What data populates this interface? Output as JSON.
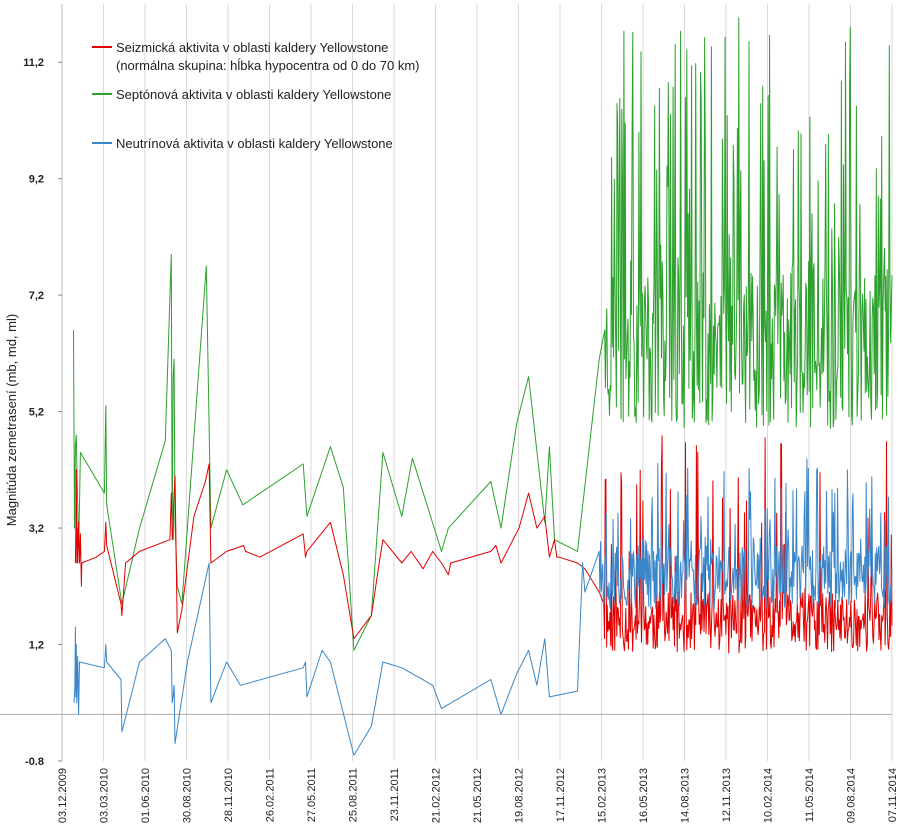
{
  "chart_data": {
    "type": "line",
    "title": "",
    "xlabel": "",
    "ylabel": "Magnitúda zemetrasení (mb, md, ml)",
    "ylim": [
      -0.8,
      12.2
    ],
    "y_ticks": [
      -0.8,
      1.2,
      3.2,
      5.2,
      7.2,
      9.2,
      11.2
    ],
    "y_tick_labels": [
      "-0.8",
      "1,2",
      "3,2",
      "5,2",
      "7,2",
      "9,2",
      "11,2"
    ],
    "x_ticks": [
      "03.12.2009",
      "03.03.2010",
      "01.06.2010",
      "30.08.2010",
      "28.11.2010",
      "26.02.2011",
      "27.05.2011",
      "25.08.2011",
      "23.11.2011",
      "21.02.2012",
      "21.05.2012",
      "19.08.2012",
      "17.11.2012",
      "15.02.2013",
      "16.05.2013",
      "14.08.2013",
      "12.11.2013",
      "10.02.2014",
      "11.05.2014",
      "09.08.2014",
      "07.11.2014"
    ],
    "grid": true,
    "legend": "top-left",
    "colors": {
      "seismic": "#e00000",
      "septon": "#2ca02c",
      "neutrino": "#3a86c8",
      "grid": "#d9d9d9"
    },
    "series": [
      {
        "name": "Seizmická aktivita v oblasti kaldery Yellowstone",
        "name_line2": "(normálna skupina: hĺbka hypocentra od 0 do 70 km)",
        "key": "seismic",
        "points": [
          [
            "2010-01-01",
            2.6
          ],
          [
            "2010-01-02",
            3.1
          ],
          [
            "2010-01-03",
            4.2
          ],
          [
            "2010-01-04",
            2.6
          ],
          [
            "2010-01-05",
            3.2
          ],
          [
            "2010-01-06",
            2.6
          ],
          [
            "2010-01-08",
            3.3
          ],
          [
            "2010-01-10",
            2.6
          ],
          [
            "2010-01-12",
            3.1
          ],
          [
            "2010-01-14",
            2.2
          ],
          [
            "2010-01-15",
            2.6
          ],
          [
            "2010-02-15",
            2.7
          ],
          [
            "2010-03-05",
            2.8
          ],
          [
            "2010-03-08",
            3.3
          ],
          [
            "2010-03-10",
            2.9
          ],
          [
            "2010-04-10",
            1.9
          ],
          [
            "2010-04-12",
            1.7
          ],
          [
            "2010-04-20",
            2.6
          ],
          [
            "2010-05-20",
            2.8
          ],
          [
            "2010-07-25",
            3.0
          ],
          [
            "2010-07-28",
            3.8
          ],
          [
            "2010-07-30",
            3.1
          ],
          [
            "2010-08-01",
            3.0
          ],
          [
            "2010-08-02",
            3.6
          ],
          [
            "2010-08-05",
            4.1
          ],
          [
            "2010-08-10",
            1.4
          ],
          [
            "2010-08-20",
            1.8
          ],
          [
            "2010-09-15",
            3.4
          ],
          [
            "2010-10-10",
            4.0
          ],
          [
            "2010-10-18",
            4.3
          ],
          [
            "2010-10-22",
            2.6
          ],
          [
            "2010-11-25",
            2.8
          ],
          [
            "2011-01-01",
            2.9
          ],
          [
            "2011-01-05",
            2.8
          ],
          [
            "2011-02-05",
            2.7
          ],
          [
            "2011-05-10",
            3.1
          ],
          [
            "2011-05-15",
            2.7
          ],
          [
            "2011-05-18",
            2.8
          ],
          [
            "2011-07-08",
            3.3
          ],
          [
            "2011-08-05",
            2.4
          ],
          [
            "2011-08-28",
            1.3
          ],
          [
            "2011-10-05",
            1.7
          ],
          [
            "2011-10-22",
            2.6
          ],
          [
            "2011-10-30",
            3.0
          ],
          [
            "2011-12-10",
            2.6
          ],
          [
            "2011-12-30",
            2.8
          ],
          [
            "2012-01-25",
            2.5
          ],
          [
            "2012-02-15",
            2.8
          ],
          [
            "2012-03-05",
            2.6
          ],
          [
            "2012-03-20",
            2.4
          ],
          [
            "2012-03-25",
            2.6
          ],
          [
            "2012-06-20",
            2.8
          ],
          [
            "2012-07-01",
            2.9
          ],
          [
            "2012-07-12",
            2.6
          ],
          [
            "2012-08-20",
            3.2
          ],
          [
            "2012-09-10",
            3.8
          ],
          [
            "2012-09-28",
            3.2
          ],
          [
            "2012-10-15",
            3.4
          ],
          [
            "2012-10-25",
            2.7
          ],
          [
            "2012-11-05",
            3.0
          ],
          [
            "2012-11-10",
            2.7
          ],
          [
            "2012-11-15",
            2.7
          ],
          [
            "2012-12-25",
            2.6
          ],
          [
            "2013-01-10",
            2.5
          ],
          [
            "2013-02-10",
            2.1
          ],
          [
            "2013-02-20",
            1.9
          ]
        ],
        "dense": {
          "start": "2013-02-20",
          "end": "2014-11-07",
          "min": 1.05,
          "max": 2.1,
          "peak": 4.8,
          "seed": 11,
          "spike_rate": 0.12
        }
      },
      {
        "name": "Septónová aktivita v oblasti kaldery Yellowstone",
        "key": "septon",
        "points": [
          [
            "2009-12-28",
            6.6
          ],
          [
            "2009-12-30",
            3.2
          ],
          [
            "2010-01-01",
            4.6
          ],
          [
            "2010-01-03",
            4.8
          ],
          [
            "2010-01-05",
            4.0
          ],
          [
            "2010-01-08",
            2.9
          ],
          [
            "2010-01-10",
            3.6
          ],
          [
            "2010-01-12",
            4.5
          ],
          [
            "2010-03-05",
            3.8
          ],
          [
            "2010-03-08",
            5.3
          ],
          [
            "2010-03-10",
            3.6
          ],
          [
            "2010-04-12",
            1.9
          ],
          [
            "2010-05-20",
            3.2
          ],
          [
            "2010-07-15",
            4.7
          ],
          [
            "2010-07-28",
            7.9
          ],
          [
            "2010-07-30",
            3.0
          ],
          [
            "2010-08-01",
            5.8
          ],
          [
            "2010-08-03",
            6.1
          ],
          [
            "2010-08-05",
            3.3
          ],
          [
            "2010-08-10",
            2.2
          ],
          [
            "2010-08-20",
            1.9
          ],
          [
            "2010-10-12",
            7.7
          ],
          [
            "2010-10-22",
            3.2
          ],
          [
            "2010-11-25",
            4.2
          ],
          [
            "2010-12-30",
            3.6
          ],
          [
            "2011-05-10",
            4.3
          ],
          [
            "2011-05-18",
            3.4
          ],
          [
            "2011-07-08",
            4.6
          ],
          [
            "2011-08-05",
            3.9
          ],
          [
            "2011-08-28",
            1.1
          ],
          [
            "2011-10-05",
            1.7
          ],
          [
            "2011-10-30",
            4.5
          ],
          [
            "2011-12-10",
            3.4
          ],
          [
            "2012-01-02",
            4.4
          ],
          [
            "2012-03-05",
            2.8
          ],
          [
            "2012-03-20",
            3.2
          ],
          [
            "2012-06-20",
            4.0
          ],
          [
            "2012-07-12",
            3.2
          ],
          [
            "2012-08-15",
            5.0
          ],
          [
            "2012-09-10",
            5.8
          ],
          [
            "2012-10-15",
            3.3
          ],
          [
            "2012-10-25",
            4.6
          ],
          [
            "2012-11-05",
            3.0
          ],
          [
            "2012-12-25",
            2.8
          ],
          [
            "2013-02-10",
            6.1
          ],
          [
            "2013-02-22",
            6.6
          ]
        ],
        "dense": {
          "start": "2013-02-22",
          "end": "2014-11-07",
          "min": 4.9,
          "max": 7.8,
          "peak": 12.0,
          "seed": 23,
          "spike_rate": 0.18
        }
      },
      {
        "name": "Neutrínová aktivita v oblasti kaldery Yellowstone",
        "key": "neutrino",
        "points": [
          [
            "2009-12-29",
            0.2
          ],
          [
            "2009-12-31",
            0.5
          ],
          [
            "2010-01-01",
            1.5
          ],
          [
            "2010-01-02",
            0.3
          ],
          [
            "2010-01-03",
            1.2
          ],
          [
            "2010-01-04",
            0.2
          ],
          [
            "2010-01-06",
            1.0
          ],
          [
            "2010-01-08",
            0.0
          ],
          [
            "2010-01-10",
            0.9
          ],
          [
            "2010-03-05",
            0.8
          ],
          [
            "2010-03-08",
            1.2
          ],
          [
            "2010-03-10",
            0.9
          ],
          [
            "2010-04-10",
            0.6
          ],
          [
            "2010-04-12",
            -0.3
          ],
          [
            "2010-05-20",
            0.9
          ],
          [
            "2010-07-15",
            1.3
          ],
          [
            "2010-07-28",
            1.1
          ],
          [
            "2010-07-30",
            0.2
          ],
          [
            "2010-08-01",
            0.3
          ],
          [
            "2010-08-03",
            0.5
          ],
          [
            "2010-08-05",
            -0.5
          ],
          [
            "2010-09-01",
            0.9
          ],
          [
            "2010-10-18",
            2.6
          ],
          [
            "2010-10-22",
            0.2
          ],
          [
            "2010-11-25",
            0.9
          ],
          [
            "2010-12-25",
            0.5
          ],
          [
            "2011-05-10",
            0.8
          ],
          [
            "2011-05-15",
            0.9
          ],
          [
            "2011-05-18",
            0.3
          ],
          [
            "2011-06-20",
            1.1
          ],
          [
            "2011-07-08",
            0.9
          ],
          [
            "2011-08-28",
            -0.7
          ],
          [
            "2011-10-05",
            -0.2
          ],
          [
            "2011-10-30",
            0.9
          ],
          [
            "2011-12-10",
            0.8
          ],
          [
            "2012-01-02",
            0.7
          ],
          [
            "2012-02-15",
            0.5
          ],
          [
            "2012-03-05",
            0.1
          ],
          [
            "2012-06-20",
            0.6
          ],
          [
            "2012-07-12",
            0.0
          ],
          [
            "2012-08-15",
            0.7
          ],
          [
            "2012-09-10",
            1.1
          ],
          [
            "2012-09-28",
            0.5
          ],
          [
            "2012-10-15",
            1.3
          ],
          [
            "2012-10-25",
            0.3
          ],
          [
            "2012-12-25",
            0.4
          ],
          [
            "2013-01-05",
            2.6
          ],
          [
            "2013-01-10",
            2.1
          ],
          [
            "2013-02-10",
            2.8
          ]
        ],
        "dense": {
          "start": "2013-02-10",
          "end": "2014-11-07",
          "min": 1.8,
          "max": 2.9,
          "peak": 4.4,
          "seed": 37,
          "spike_rate": 0.15
        }
      }
    ]
  }
}
